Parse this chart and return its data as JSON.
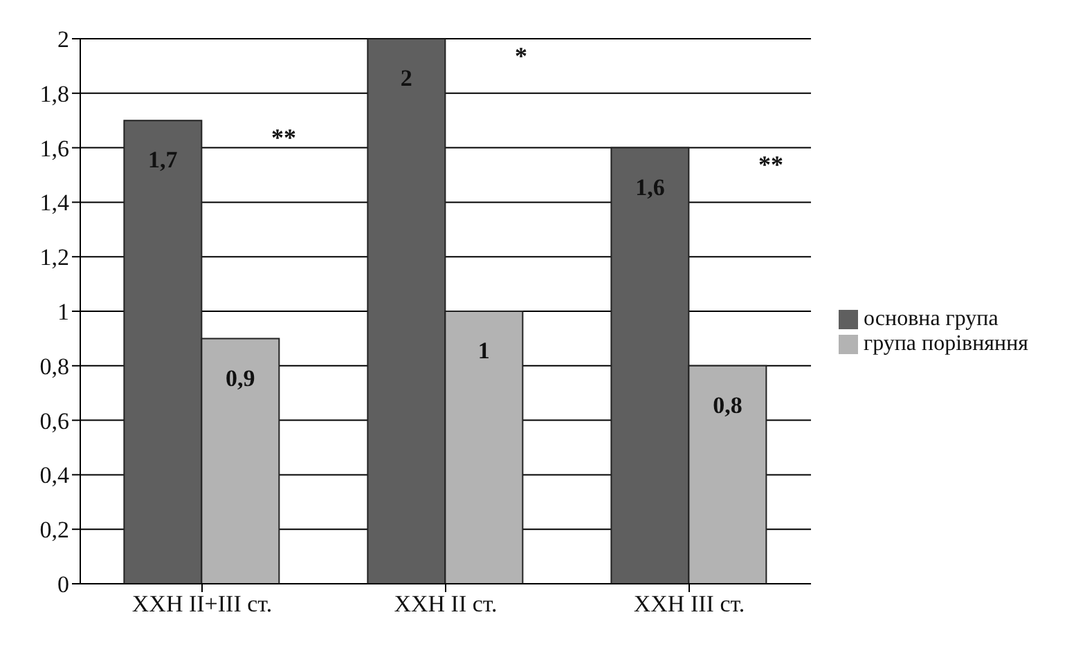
{
  "chart_data": {
    "type": "bar",
    "categories": [
      "ХХН II+III ст.",
      "ХХН II ст.",
      "ХХН III ст."
    ],
    "series": [
      {
        "name": "основна група",
        "color": "#5f5f5f",
        "values": [
          1.7,
          2,
          1.6
        ],
        "value_labels": [
          "1,7",
          "2",
          "1,6"
        ]
      },
      {
        "name": "група порівняння",
        "color": "#b3b3b3",
        "values": [
          0.9,
          1,
          0.8
        ],
        "value_labels": [
          "0,9",
          "1",
          "0,8"
        ]
      }
    ],
    "ylim": [
      0,
      2
    ],
    "yticks": [
      {
        "value": 0,
        "label": "0"
      },
      {
        "value": 0.2,
        "label": "0,2"
      },
      {
        "value": 0.4,
        "label": "0,4"
      },
      {
        "value": 0.6,
        "label": "0,6"
      },
      {
        "value": 0.8,
        "label": "0,8"
      },
      {
        "value": 1,
        "label": "1"
      },
      {
        "value": 1.2,
        "label": "1,2"
      },
      {
        "value": 1.4,
        "label": "1,4"
      },
      {
        "value": 1.6,
        "label": "1,6"
      },
      {
        "value": 1.8,
        "label": "1,8"
      },
      {
        "value": 2,
        "label": "2"
      }
    ],
    "grid": "y",
    "legend": "right",
    "annotations": [
      "**",
      "*",
      "**"
    ]
  }
}
